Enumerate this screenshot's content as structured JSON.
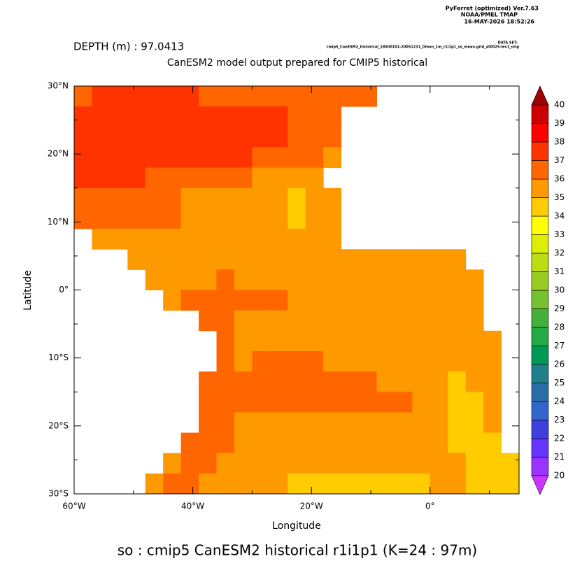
{
  "header": {
    "software": "PyFerret (optimized) Ver.7.63",
    "org": "NOAA/PMEL TMAP",
    "date": "16-MAY-2026 18:52:26",
    "dataset_label": "DATA SET:",
    "dataset": "cmip5_CanESM2_historical_18500101-20051231_Omon_1m_r1i1p1_so_mean.grid_at0025-lev1_orig",
    "depth": "DEPTH (m) : 97.0413"
  },
  "chart_data": {
    "type": "heatmap",
    "title": "CanESM2 model output prepared for CMIP5 historical",
    "xlabel": "Longitude",
    "ylabel": "Latitude",
    "footer": "so : cmip5 CanESM2 historical r1i1p1   (K=24 : 97m)",
    "xlim": [
      -60,
      15
    ],
    "ylim": [
      -30,
      30
    ],
    "xticks": [
      {
        "value": -60,
        "label": "60°W"
      },
      {
        "value": -40,
        "label": "40°W"
      },
      {
        "value": -20,
        "label": "20°W"
      },
      {
        "value": 0,
        "label": "0°"
      }
    ],
    "xminorticks": [
      -50,
      -30,
      -10,
      10
    ],
    "yticks": [
      {
        "value": 30,
        "label": "30°N"
      },
      {
        "value": 20,
        "label": "20°N"
      },
      {
        "value": 10,
        "label": "10°N"
      },
      {
        "value": 0,
        "label": "0°"
      },
      {
        "value": -10,
        "label": "10°S"
      },
      {
        "value": -20,
        "label": "20°S"
      },
      {
        "value": -30,
        "label": "30°S"
      }
    ],
    "yminorticks": [
      25,
      15,
      5,
      -5,
      -15,
      -25
    ],
    "lon_edges": [
      -60,
      -57,
      -54,
      -51,
      -48,
      -45,
      -42,
      -39,
      -36,
      -33,
      -30,
      -27,
      -24,
      -21,
      -18,
      -15,
      -12,
      -9,
      -6,
      -3,
      0,
      3,
      6,
      9,
      12,
      15
    ],
    "lat_edges": [
      30,
      27,
      24,
      21,
      18,
      15,
      12,
      9,
      6,
      3,
      0,
      -3,
      -6,
      -9,
      -12,
      -15,
      -18,
      -21,
      -24,
      -27,
      -30
    ],
    "values": [
      [
        36.5,
        37.5,
        37.5,
        37.5,
        37.5,
        37.5,
        37.5,
        36.5,
        36.5,
        36.5,
        36.5,
        36.5,
        36.5,
        36.5,
        36.5,
        36.5,
        36.5,
        null,
        null,
        null,
        null,
        null,
        null,
        null,
        null
      ],
      [
        37.5,
        37.5,
        37.5,
        37.5,
        37.5,
        37.5,
        37.5,
        37.5,
        37.5,
        37.5,
        37.5,
        37.5,
        36.5,
        36.5,
        36.5,
        null,
        null,
        null,
        null,
        null,
        null,
        null,
        null,
        null,
        null
      ],
      [
        37.5,
        37.5,
        37.5,
        37.5,
        37.5,
        37.5,
        37.5,
        37.5,
        37.5,
        37.5,
        37.5,
        37.5,
        36.5,
        36.5,
        36.5,
        null,
        null,
        null,
        null,
        null,
        null,
        null,
        null,
        null,
        null
      ],
      [
        37.5,
        37.5,
        37.5,
        37.5,
        37.5,
        37.5,
        37.5,
        37.5,
        37.5,
        37.5,
        36.5,
        36.5,
        36.5,
        36.5,
        35.5,
        null,
        null,
        null,
        null,
        null,
        null,
        null,
        null,
        null,
        null
      ],
      [
        37.5,
        37.5,
        37.5,
        37.5,
        36.5,
        36.5,
        36.5,
        36.5,
        36.5,
        36.5,
        35.5,
        35.5,
        35.5,
        35.5,
        null,
        null,
        null,
        null,
        null,
        null,
        null,
        null,
        null,
        null,
        null
      ],
      [
        36.5,
        36.5,
        36.5,
        36.5,
        36.5,
        36.5,
        35.5,
        35.5,
        35.5,
        35.5,
        35.5,
        35.5,
        34.5,
        35.5,
        35.5,
        null,
        null,
        null,
        null,
        null,
        null,
        null,
        null,
        null,
        null
      ],
      [
        36.5,
        36.5,
        36.5,
        36.5,
        36.5,
        36.5,
        35.5,
        35.5,
        35.5,
        35.5,
        35.5,
        35.5,
        34.5,
        35.5,
        35.5,
        null,
        null,
        null,
        null,
        null,
        null,
        null,
        null,
        null,
        null
      ],
      [
        null,
        35.5,
        35.5,
        35.5,
        35.5,
        35.5,
        35.5,
        35.5,
        35.5,
        35.5,
        35.5,
        35.5,
        35.5,
        35.5,
        35.5,
        null,
        null,
        null,
        null,
        null,
        null,
        null,
        null,
        null,
        null
      ],
      [
        null,
        null,
        null,
        35.5,
        35.5,
        35.5,
        35.5,
        35.5,
        35.5,
        35.5,
        35.5,
        35.5,
        35.5,
        35.5,
        35.5,
        35.5,
        35.5,
        35.5,
        35.5,
        35.5,
        35.5,
        35.5,
        null,
        null,
        null
      ],
      [
        null,
        null,
        null,
        null,
        35.5,
        35.5,
        35.5,
        35.5,
        36.5,
        35.5,
        35.5,
        35.5,
        35.5,
        35.5,
        35.5,
        35.5,
        35.5,
        35.5,
        35.5,
        35.5,
        35.5,
        35.5,
        35.5,
        null,
        null
      ],
      [
        null,
        null,
        null,
        null,
        null,
        35.5,
        36.5,
        36.5,
        36.5,
        36.5,
        36.5,
        36.5,
        35.5,
        35.5,
        35.5,
        35.5,
        35.5,
        35.5,
        35.5,
        35.5,
        35.5,
        35.5,
        35.5,
        null,
        null
      ],
      [
        null,
        null,
        null,
        null,
        null,
        null,
        null,
        36.5,
        36.5,
        35.5,
        35.5,
        35.5,
        35.5,
        35.5,
        35.5,
        35.5,
        35.5,
        35.5,
        35.5,
        35.5,
        35.5,
        35.5,
        35.5,
        null,
        null
      ],
      [
        null,
        null,
        null,
        null,
        null,
        null,
        null,
        null,
        36.5,
        35.5,
        35.5,
        35.5,
        35.5,
        35.5,
        35.5,
        35.5,
        35.5,
        35.5,
        35.5,
        35.5,
        35.5,
        35.5,
        35.5,
        35.5,
        null
      ],
      [
        null,
        null,
        null,
        null,
        null,
        null,
        null,
        null,
        36.5,
        35.5,
        36.5,
        36.5,
        36.5,
        36.5,
        35.5,
        35.5,
        35.5,
        35.5,
        35.5,
        35.5,
        35.5,
        35.5,
        35.5,
        35.5,
        null
      ],
      [
        null,
        null,
        null,
        null,
        null,
        null,
        null,
        36.5,
        36.5,
        36.5,
        36.5,
        36.5,
        36.5,
        36.5,
        36.5,
        36.5,
        36.5,
        35.5,
        35.5,
        35.5,
        35.5,
        34.5,
        35.5,
        35.5,
        null
      ],
      [
        null,
        null,
        null,
        null,
        null,
        null,
        null,
        36.5,
        36.5,
        36.5,
        36.5,
        36.5,
        36.5,
        36.5,
        36.5,
        36.5,
        36.5,
        36.5,
        36.5,
        35.5,
        35.5,
        34.5,
        34.5,
        35.5,
        null
      ],
      [
        null,
        null,
        null,
        null,
        null,
        null,
        null,
        36.5,
        36.5,
        35.5,
        35.5,
        35.5,
        35.5,
        35.5,
        35.5,
        35.5,
        35.5,
        35.5,
        35.5,
        35.5,
        35.5,
        34.5,
        34.5,
        35.5,
        null
      ],
      [
        null,
        null,
        null,
        null,
        null,
        null,
        36.5,
        36.5,
        36.5,
        35.5,
        35.5,
        35.5,
        35.5,
        35.5,
        35.5,
        35.5,
        35.5,
        35.5,
        35.5,
        35.5,
        35.5,
        34.5,
        34.5,
        34.5,
        null
      ],
      [
        null,
        null,
        null,
        null,
        null,
        35.5,
        36.5,
        36.5,
        35.5,
        35.5,
        35.5,
        35.5,
        35.5,
        35.5,
        35.5,
        35.5,
        35.5,
        35.5,
        35.5,
        35.5,
        35.5,
        35.5,
        34.5,
        34.5,
        34.5
      ],
      [
        null,
        null,
        null,
        null,
        35.5,
        36.5,
        36.5,
        35.5,
        35.5,
        35.5,
        35.5,
        35.5,
        34.5,
        34.5,
        34.5,
        34.5,
        34.5,
        34.5,
        34.5,
        34.5,
        35.5,
        35.5,
        34.5,
        34.5,
        34.5
      ]
    ],
    "colorbar": {
      "levels": [
        20,
        21,
        22,
        23,
        24,
        25,
        26,
        27,
        28,
        29,
        30,
        31,
        32,
        33,
        34,
        35,
        36,
        37,
        38,
        39,
        40
      ],
      "colors": [
        "#9933ff",
        "#6633ff",
        "#3f3fdd",
        "#3366cc",
        "#2a6ea8",
        "#1f7f8c",
        "#009955",
        "#22aa44",
        "#44b03a",
        "#77c030",
        "#99cc22",
        "#bbdd11",
        "#ddee00",
        "#ffff00",
        "#ffcc00",
        "#ff9900",
        "#ff6600",
        "#ff3300",
        "#ff0000",
        "#cc0000"
      ],
      "under_color": "#cc33ff",
      "over_color": "#a00000"
    }
  }
}
